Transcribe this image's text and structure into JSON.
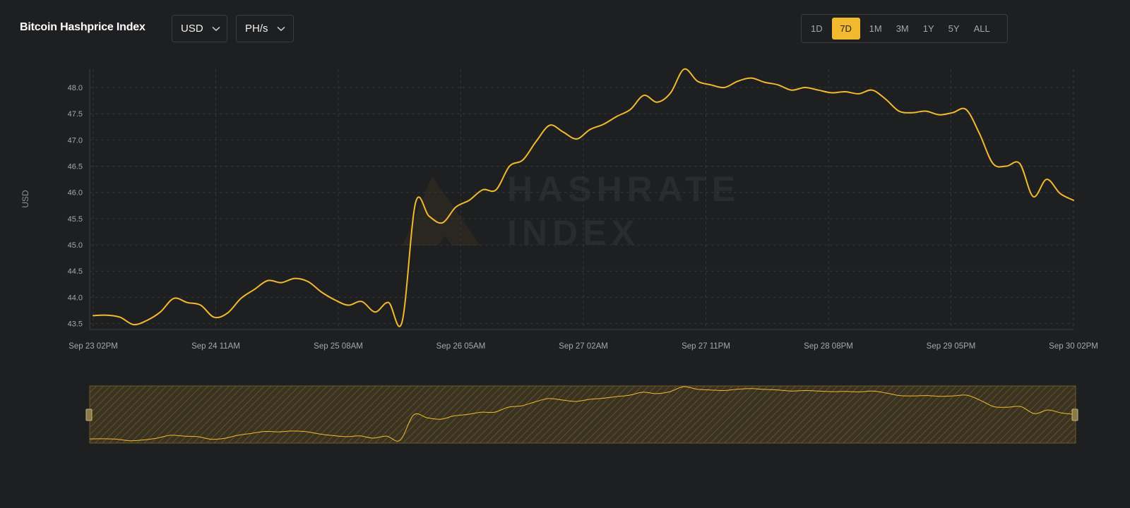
{
  "header": {
    "title": "Bitcoin Hashprice Index",
    "currency_dropdown": {
      "value": "USD"
    },
    "unit_dropdown": {
      "value": "PH/s"
    },
    "ranges": [
      {
        "label": "1D",
        "active": false
      },
      {
        "label": "7D",
        "active": true
      },
      {
        "label": "1M",
        "active": false
      },
      {
        "label": "3M",
        "active": false
      },
      {
        "label": "1Y",
        "active": false
      },
      {
        "label": "5Y",
        "active": false
      },
      {
        "label": "ALL",
        "active": false
      }
    ]
  },
  "watermark": {
    "line1": "HASHRATE",
    "line2": "INDEX"
  },
  "colors": {
    "accent": "#f2b92e",
    "background": "#1e1f21",
    "grid": "#34363a",
    "text_muted": "#a5a7ab"
  },
  "chart_data": {
    "type": "line",
    "ylabel": "USD",
    "ylim": [
      43.4,
      48.35
    ],
    "y_ticks": [
      43.5,
      44.0,
      44.5,
      45.0,
      45.5,
      46.0,
      46.5,
      47.0,
      47.5,
      48.0
    ],
    "x_ticks": [
      "Sep 23 02PM",
      "Sep 24 11AM",
      "Sep 25 08AM",
      "Sep 26 05AM",
      "Sep 27 02AM",
      "Sep 27 11PM",
      "Sep 28 08PM",
      "Sep 29 05PM",
      "Sep 30 02PM"
    ],
    "x_start": "Sep 23 02PM",
    "x_end": "Sep 30 02PM",
    "grid": true,
    "navigator": true,
    "series": [
      {
        "name": "",
        "interval_hours": 3,
        "values": [
          43.65,
          43.66,
          43.62,
          43.48,
          43.56,
          43.72,
          43.98,
          43.9,
          43.85,
          43.62,
          43.7,
          43.98,
          44.15,
          44.32,
          44.28,
          44.36,
          44.3,
          44.1,
          43.95,
          43.85,
          43.92,
          43.72,
          43.9,
          43.53,
          45.8,
          45.55,
          45.42,
          45.72,
          45.85,
          46.05,
          46.05,
          46.5,
          46.62,
          46.98,
          47.28,
          47.15,
          47.02,
          47.2,
          47.3,
          47.45,
          47.58,
          47.85,
          47.72,
          47.9,
          48.35,
          48.12,
          48.05,
          48.0,
          48.12,
          48.18,
          48.1,
          48.05,
          47.95,
          48.0,
          47.95,
          47.9,
          47.92,
          47.88,
          47.95,
          47.78,
          47.55,
          47.52,
          47.55,
          47.48,
          47.52,
          47.58,
          47.12,
          46.55,
          46.5,
          46.55,
          45.92,
          46.25,
          45.98,
          45.85
        ]
      }
    ]
  }
}
